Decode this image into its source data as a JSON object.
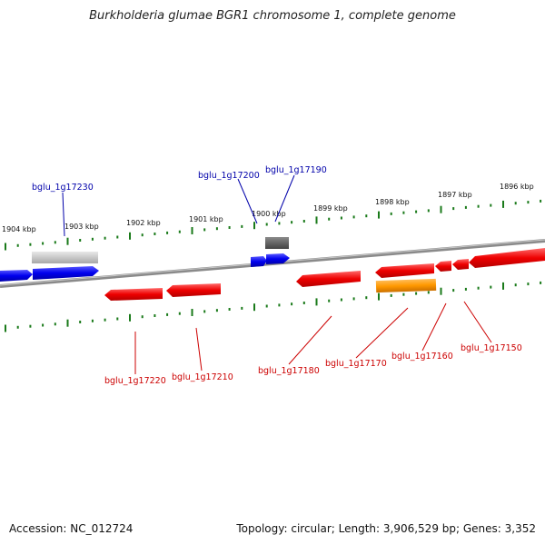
{
  "title": "Burkholderia glumae BGR1 chromosome 1, complete genome",
  "footer": {
    "accession": "Accession: NC_012724",
    "stats": "Topology: circular; Length: 3,906,529 bp; Genes: 3,352"
  },
  "scale_labels": [
    "1904 kbp",
    "1903 kbp",
    "1902 kbp",
    "1901 kbp",
    "1900 kbp",
    "1899 kbp",
    "1898 kbp",
    "1897 kbp",
    "1896 kbp"
  ],
  "gene_labels": {
    "bglu_1g17230": "bglu_1g17230",
    "bglu_1g17200": "bglu_1g17200",
    "bglu_1g17190": "bglu_1g17190",
    "bglu_1g17220": "bglu_1g17220",
    "bglu_1g17210": "bglu_1g17210",
    "bglu_1g17180": "bglu_1g17180",
    "bglu_1g17170": "bglu_1g17170",
    "bglu_1g17160": "bglu_1g17160",
    "bglu_1g17150": "bglu_1g17150"
  },
  "colors": {
    "forward_gene": "#0000ee",
    "reverse_gene": "#ee0000",
    "label_forward": "#0000aa",
    "label_reverse": "#cc0000",
    "ticks": "#1a7a1a",
    "backbone": "#808080",
    "pseudo_gene_light": "#c8c8c8",
    "pseudo_gene_dark": "#666666",
    "orange_gene": "#ff9900"
  }
}
